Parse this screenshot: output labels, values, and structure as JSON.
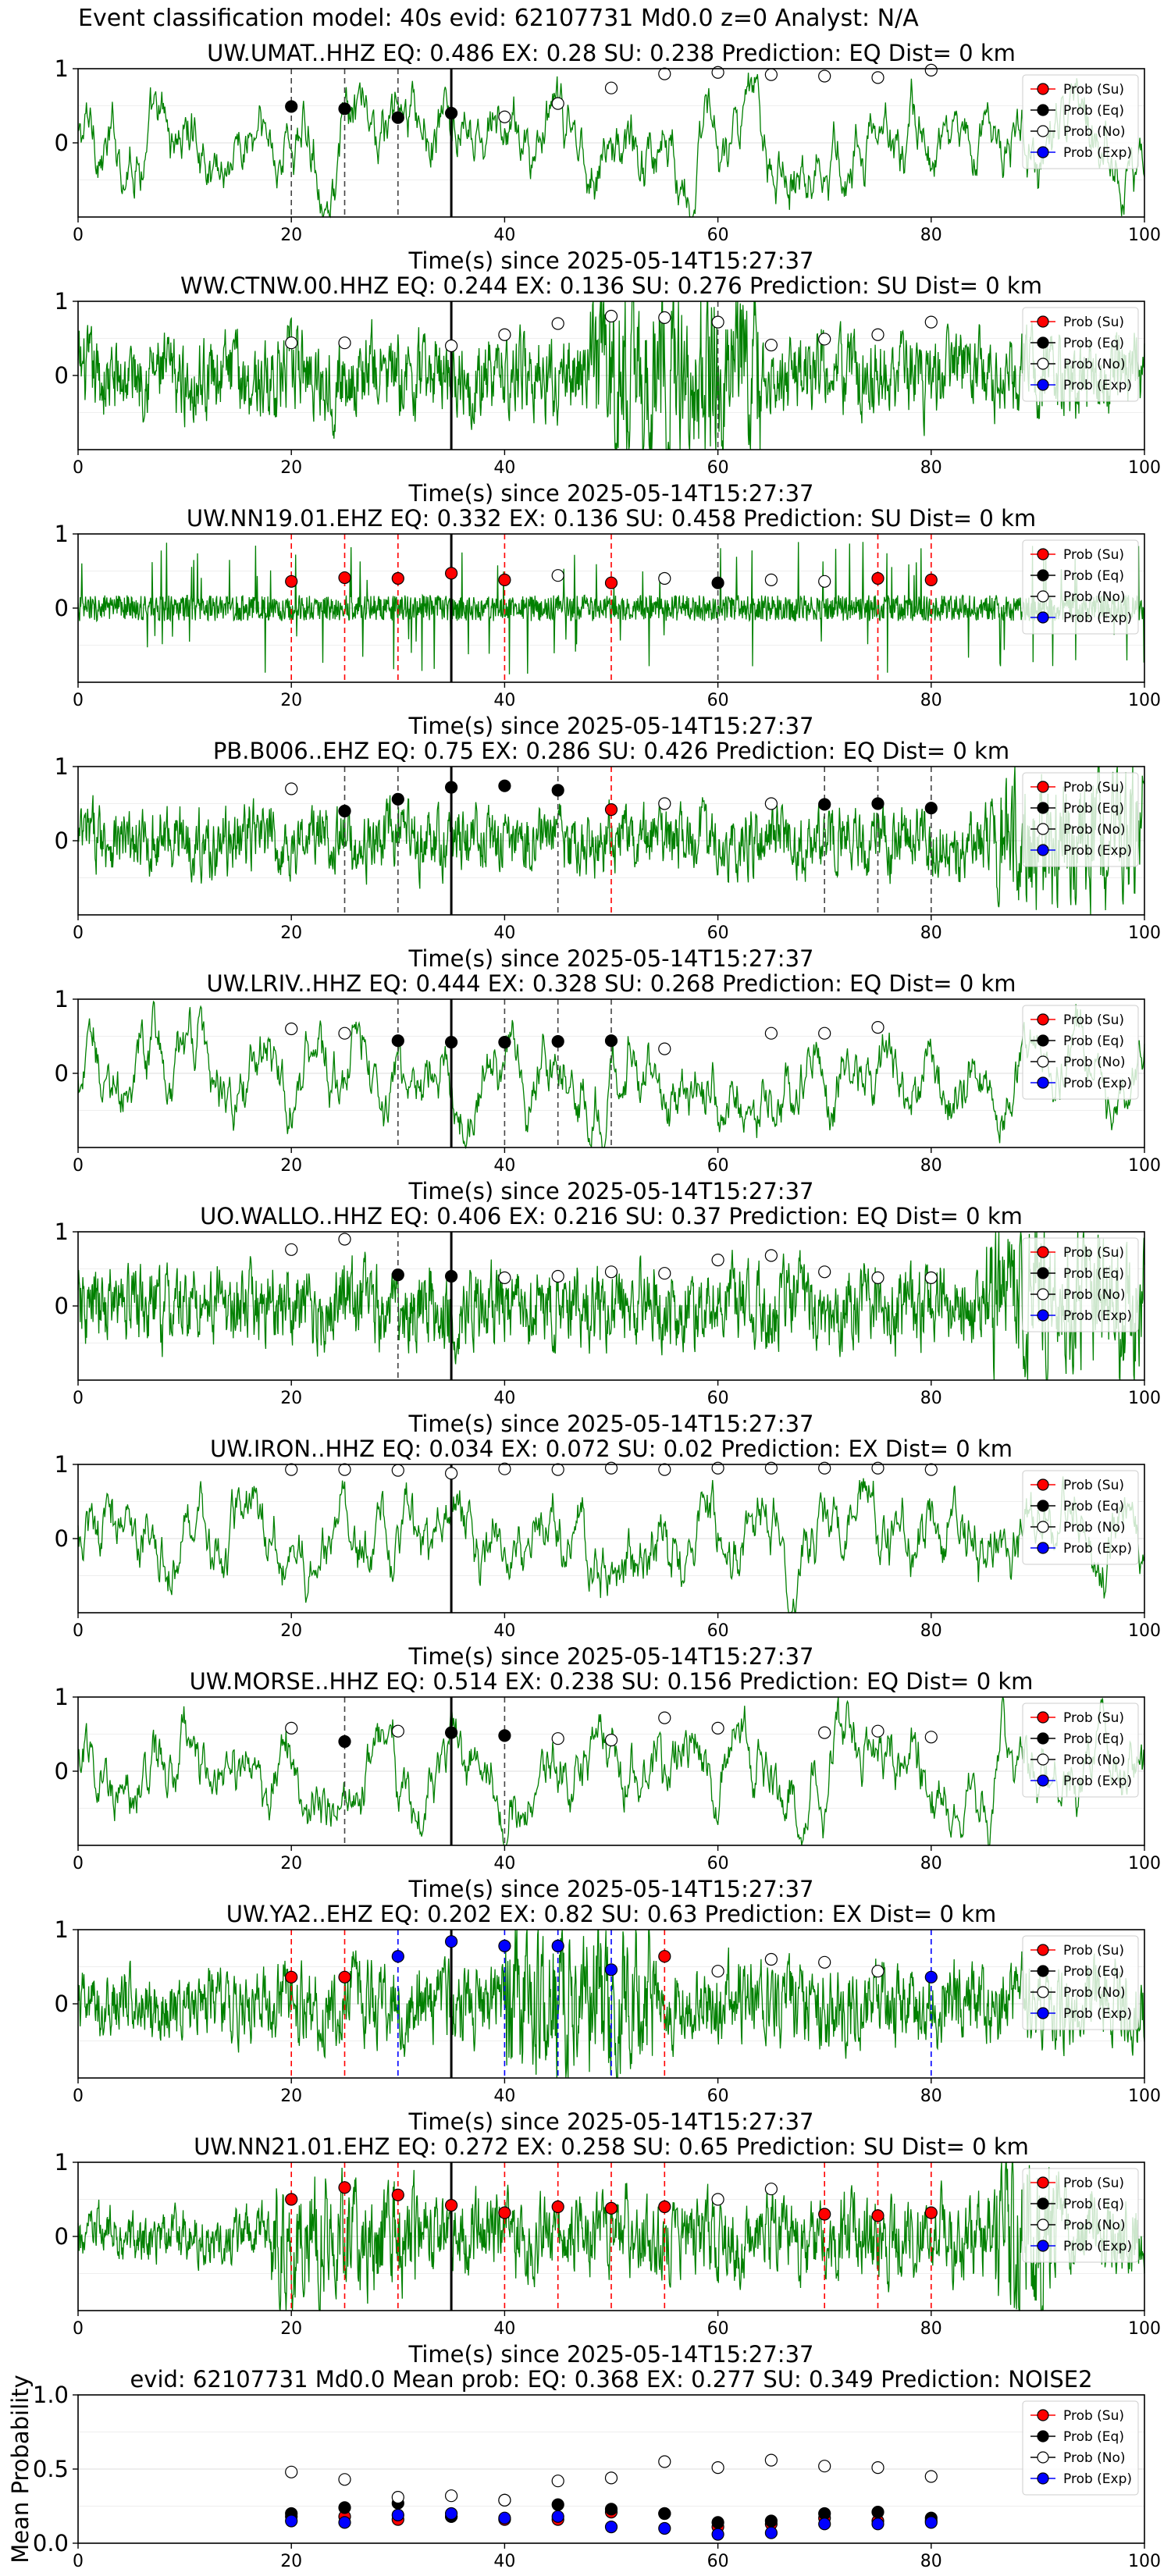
{
  "figure": {
    "suptitle": "Event classification model: 40s evid: 62107731 Md0.0 z=0 Analyst: N/A"
  },
  "legend_labels": [
    "Prob (Su)",
    "Prob (Eq)",
    "Prob (No)",
    "Prob (Exp)"
  ],
  "colors": {
    "Su": "#ff0000",
    "Eq": "#000000",
    "No": "#ffffff",
    "Exp": "#0000ff",
    "waveform": "#008000",
    "grid": "#dddddd"
  },
  "chart_data": [
    {
      "type": "line",
      "title": "UW.UMAT..HHZ   EQ: 0.486   EX: 0.28   SU: 0.238   Prediction: EQ    Dist= 0 km",
      "xlabel": "Time(s) since 2025-05-14T15:27:37",
      "xlim": [
        0,
        100
      ],
      "ylim": [
        -1,
        1
      ],
      "yticks": [
        "1",
        "0"
      ],
      "xticks": [
        "0",
        "20",
        "40",
        "60",
        "80",
        "100"
      ],
      "window_times": [
        20,
        25,
        30,
        35,
        40,
        45,
        50,
        55,
        60,
        65,
        70,
        75,
        80
      ],
      "marker_class": [
        "Eq",
        "Eq",
        "Eq",
        "Eq",
        "No",
        "No",
        "No",
        "No",
        "No",
        "No",
        "No",
        "No",
        "No"
      ],
      "marker_prob": [
        0.49,
        0.46,
        0.34,
        0.4,
        0.35,
        0.53,
        0.74,
        0.93,
        0.95,
        0.92,
        0.9,
        0.88,
        0.98
      ],
      "vlines": [
        20,
        25,
        30
      ],
      "origin_time": 35,
      "waveform": "long-period",
      "legend": "top-right"
    },
    {
      "type": "line",
      "title": "WW.CTNW.00.HHZ   EQ: 0.244   EX: 0.136   SU: 0.276    Prediction: SU    Dist= 0 km",
      "xlabel": "Time(s) since 2025-05-14T15:27:37",
      "xlim": [
        0,
        100
      ],
      "ylim": [
        -1,
        1
      ],
      "yticks": [
        "1",
        "0"
      ],
      "xticks": [
        "0",
        "20",
        "40",
        "60",
        "80",
        "100"
      ],
      "window_times": [
        20,
        25,
        35,
        40,
        45,
        50,
        55,
        60,
        65,
        70,
        75,
        80
      ],
      "marker_class": [
        "No",
        "No",
        "No",
        "No",
        "No",
        "No",
        "No",
        "No",
        "No",
        "No",
        "No",
        "No"
      ],
      "marker_prob": [
        0.44,
        0.44,
        0.4,
        0.55,
        0.7,
        0.8,
        0.78,
        0.72,
        0.41,
        0.49,
        0.55,
        0.72
      ],
      "vlines": [
        60
      ],
      "origin_time": 35,
      "waveform": "noisy-burst",
      "legend": "top-right"
    },
    {
      "type": "line",
      "title": "UW.NN19.01.EHZ   EQ: 0.332   EX: 0.136   SU: 0.458    Prediction: SU    Dist= 0 km",
      "xlabel": "Time(s) since 2025-05-14T15:27:37",
      "xlim": [
        0,
        100
      ],
      "ylim": [
        -1,
        1
      ],
      "yticks": [
        "1",
        "0"
      ],
      "xticks": [
        "0",
        "20",
        "40",
        "60",
        "80",
        "100"
      ],
      "window_times": [
        20,
        25,
        30,
        35,
        40,
        45,
        50,
        55,
        60,
        65,
        70,
        75,
        80
      ],
      "marker_class": [
        "Su",
        "Su",
        "Su",
        "Su",
        "Su",
        "No",
        "Su",
        "No",
        "Eq",
        "No",
        "No",
        "Su",
        "Su"
      ],
      "marker_prob": [
        0.36,
        0.41,
        0.4,
        0.47,
        0.38,
        0.44,
        0.34,
        0.4,
        0.34,
        0.38,
        0.36,
        0.4,
        0.38
      ],
      "vlines": [
        20,
        25,
        30,
        40,
        50,
        60,
        75,
        80
      ],
      "origin_time": 35,
      "waveform": "spiky",
      "legend": "top-right"
    },
    {
      "type": "line",
      "title": "PB.B006..EHZ   EQ: 0.75   EX: 0.286   SU: 0.426    Prediction: EQ    Dist= 0 km",
      "xlabel": "Time(s) since 2025-05-14T15:27:37",
      "xlim": [
        0,
        100
      ],
      "ylim": [
        -1,
        1
      ],
      "yticks": [
        "1",
        "0"
      ],
      "xticks": [
        "0",
        "20",
        "40",
        "60",
        "80",
        "100"
      ],
      "window_times": [
        20,
        25,
        30,
        35,
        40,
        45,
        50,
        55,
        65,
        70,
        75,
        80
      ],
      "marker_class": [
        "No",
        "Eq",
        "Eq",
        "Eq",
        "Eq",
        "Eq",
        "Su",
        "No",
        "No",
        "Eq",
        "Eq",
        "Eq"
      ],
      "marker_prob": [
        0.7,
        0.4,
        0.56,
        0.72,
        0.74,
        0.68,
        0.42,
        0.5,
        0.5,
        0.49,
        0.5,
        0.44
      ],
      "vlines": [
        25,
        30,
        45,
        50,
        70,
        75,
        80
      ],
      "origin_time": 35,
      "waveform": "medium",
      "legend": "top-right"
    },
    {
      "type": "line",
      "title": "UW.LRIV..HHZ   EQ: 0.444   EX: 0.328   SU: 0.268    Prediction: EQ    Dist= 0 km",
      "xlabel": "Time(s) since 2025-05-14T15:27:37",
      "xlim": [
        0,
        100
      ],
      "ylim": [
        -1,
        1
      ],
      "yticks": [
        "1",
        "0"
      ],
      "xticks": [
        "0",
        "20",
        "40",
        "60",
        "80",
        "100"
      ],
      "window_times": [
        20,
        25,
        30,
        35,
        40,
        45,
        50,
        55,
        65,
        70,
        75
      ],
      "marker_class": [
        "No",
        "No",
        "Eq",
        "Eq",
        "Eq",
        "Eq",
        "Eq",
        "No",
        "No",
        "No",
        "No"
      ],
      "marker_prob": [
        0.6,
        0.54,
        0.44,
        0.42,
        0.42,
        0.43,
        0.44,
        0.33,
        0.54,
        0.54,
        0.62
      ],
      "vlines": [
        30,
        40,
        45,
        50
      ],
      "origin_time": 35,
      "waveform": "long-period",
      "legend": "top-right"
    },
    {
      "type": "line",
      "title": "UO.WALLO..HHZ   EQ: 0.406   EX: 0.216   SU: 0.37    Prediction: EQ    Dist= 0 km",
      "xlabel": "Time(s) since 2025-05-14T15:27:37",
      "xlim": [
        0,
        100
      ],
      "ylim": [
        -1,
        1
      ],
      "yticks": [
        "1",
        "0"
      ],
      "xticks": [
        "0",
        "20",
        "40",
        "60",
        "80",
        "100"
      ],
      "window_times": [
        20,
        25,
        30,
        35,
        40,
        45,
        50,
        55,
        60,
        65,
        70,
        75,
        80
      ],
      "marker_class": [
        "No",
        "No",
        "Eq",
        "Eq",
        "No",
        "No",
        "No",
        "No",
        "No",
        "No",
        "No",
        "No",
        "No"
      ],
      "marker_prob": [
        0.76,
        0.9,
        0.42,
        0.4,
        0.38,
        0.4,
        0.46,
        0.44,
        0.62,
        0.68,
        0.46,
        0.38,
        0.38
      ],
      "vlines": [
        30
      ],
      "origin_time": 35,
      "waveform": "noisy",
      "legend": "top-right"
    },
    {
      "type": "line",
      "title": "UW.IRON..HHZ   EQ: 0.034   EX: 0.072   SU: 0.02    Prediction: EX    Dist= 0 km",
      "xlabel": "Time(s) since 2025-05-14T15:27:37",
      "xlim": [
        0,
        100
      ],
      "ylim": [
        -1,
        1
      ],
      "yticks": [
        "1",
        "0"
      ],
      "xticks": [
        "0",
        "20",
        "40",
        "60",
        "80",
        "100"
      ],
      "window_times": [
        20,
        25,
        30,
        35,
        40,
        45,
        50,
        55,
        60,
        65,
        70,
        75,
        80
      ],
      "marker_class": [
        "No",
        "No",
        "No",
        "No",
        "No",
        "No",
        "No",
        "No",
        "No",
        "No",
        "No",
        "No",
        "No"
      ],
      "marker_prob": [
        0.93,
        0.93,
        0.92,
        0.88,
        0.94,
        0.93,
        0.95,
        0.93,
        0.95,
        0.95,
        0.95,
        0.95,
        0.93
      ],
      "vlines": [],
      "origin_time": 35,
      "waveform": "long-period",
      "legend": "top-right"
    },
    {
      "type": "line",
      "title": "UW.MORSE..HHZ   EQ: 0.514   EX: 0.238   SU: 0.156    Prediction: EQ    Dist= 0 km",
      "xlabel": "Time(s) since 2025-05-14T15:27:37",
      "xlim": [
        0,
        100
      ],
      "ylim": [
        -1,
        1
      ],
      "yticks": [
        "1",
        "0"
      ],
      "xticks": [
        "0",
        "20",
        "40",
        "60",
        "80",
        "100"
      ],
      "window_times": [
        20,
        25,
        30,
        35,
        40,
        45,
        50,
        55,
        60,
        70,
        75,
        80
      ],
      "marker_class": [
        "No",
        "Eq",
        "No",
        "Eq",
        "Eq",
        "No",
        "No",
        "No",
        "No",
        "No",
        "No",
        "No"
      ],
      "marker_prob": [
        0.58,
        0.4,
        0.54,
        0.52,
        0.48,
        0.44,
        0.42,
        0.72,
        0.58,
        0.52,
        0.54,
        0.46
      ],
      "vlines": [
        25,
        40
      ],
      "origin_time": 35,
      "waveform": "long-period",
      "legend": "top-right"
    },
    {
      "type": "line",
      "title": "UW.YA2..EHZ   EQ: 0.202   EX: 0.82   SU: 0.63    Prediction: EX    Dist= 0 km",
      "xlabel": "Time(s) since 2025-05-14T15:27:37",
      "xlim": [
        0,
        100
      ],
      "ylim": [
        -1,
        1
      ],
      "yticks": [
        "1",
        "0"
      ],
      "xticks": [
        "0",
        "20",
        "40",
        "60",
        "80",
        "100"
      ],
      "window_times": [
        20,
        25,
        30,
        35,
        40,
        45,
        50,
        55,
        60,
        65,
        70,
        75,
        80
      ],
      "marker_class": [
        "Su",
        "Su",
        "Exp",
        "Exp",
        "Exp",
        "Exp",
        "Exp",
        "Su",
        "No",
        "No",
        "No",
        "No",
        "Exp"
      ],
      "marker_prob": [
        0.36,
        0.36,
        0.64,
        0.84,
        0.78,
        0.78,
        0.46,
        0.64,
        0.44,
        0.6,
        0.56,
        0.44,
        0.36
      ],
      "vlines": [
        20,
        25,
        30,
        40,
        45,
        50,
        55,
        80
      ],
      "vline_colors": [
        "Su",
        "Su",
        "Exp",
        "Exp",
        "Exp",
        "Exp",
        "Su",
        "Exp"
      ],
      "origin_time": 35,
      "waveform": "medium-burst",
      "legend": "top-right"
    },
    {
      "type": "line",
      "title": "UW.NN21.01.EHZ   EQ: 0.272   EX: 0.258   SU: 0.65    Prediction: SU    Dist= 0 km",
      "xlabel": "Time(s) since 2025-05-14T15:27:37",
      "xlim": [
        0,
        100
      ],
      "ylim": [
        -1,
        1
      ],
      "yticks": [
        "1",
        "0"
      ],
      "xticks": [
        "0",
        "20",
        "40",
        "60",
        "80",
        "100"
      ],
      "window_times": [
        20,
        25,
        30,
        35,
        40,
        45,
        50,
        55,
        60,
        65,
        70,
        75,
        80
      ],
      "marker_class": [
        "Su",
        "Su",
        "Su",
        "Su",
        "Su",
        "Su",
        "Su",
        "Su",
        "No",
        "No",
        "Su",
        "Su",
        "Su"
      ],
      "marker_prob": [
        0.5,
        0.66,
        0.56,
        0.42,
        0.32,
        0.4,
        0.38,
        0.4,
        0.5,
        0.64,
        0.3,
        0.28,
        0.32
      ],
      "vlines": [
        20,
        25,
        30,
        40,
        45,
        50,
        55,
        70,
        75,
        80
      ],
      "origin_time": 35,
      "waveform": "noisy-late-burst",
      "legend": "top-right"
    },
    {
      "type": "scatter",
      "title": "evid: 62107731  Md0.0   Mean prob:   EQ: 0.368  EX: 0.277  SU: 0.349   Prediction: NOISE2",
      "xlabel": "",
      "ylabel": "Mean Probability",
      "xlim": [
        0,
        100
      ],
      "ylim": [
        0,
        1
      ],
      "yticks": [
        "0.0",
        "0.5",
        "1.0"
      ],
      "xticks": [
        "0",
        "20",
        "40",
        "60",
        "80",
        "100"
      ],
      "x": [
        20,
        25,
        30,
        35,
        40,
        45,
        50,
        55,
        60,
        65,
        70,
        75,
        80
      ],
      "series": [
        {
          "name": "Prob (Su)",
          "values": [
            0.18,
            0.18,
            0.16,
            0.18,
            0.16,
            0.16,
            0.21,
            0.2,
            0.11,
            0.13,
            0.17,
            0.15,
            0.15
          ]
        },
        {
          "name": "Prob (Eq)",
          "values": [
            0.2,
            0.24,
            0.27,
            0.18,
            0.29,
            0.26,
            0.23,
            0.2,
            0.14,
            0.15,
            0.2,
            0.21,
            0.17
          ]
        },
        {
          "name": "Prob (No)",
          "values": [
            0.48,
            0.43,
            0.31,
            0.32,
            0.29,
            0.42,
            0.44,
            0.55,
            0.51,
            0.56,
            0.52,
            0.51,
            0.45
          ]
        },
        {
          "name": "Prob (Exp)",
          "values": [
            0.15,
            0.14,
            0.19,
            0.2,
            0.17,
            0.18,
            0.11,
            0.1,
            0.06,
            0.07,
            0.13,
            0.13,
            0.14
          ]
        }
      ],
      "legend": "top-right"
    }
  ]
}
